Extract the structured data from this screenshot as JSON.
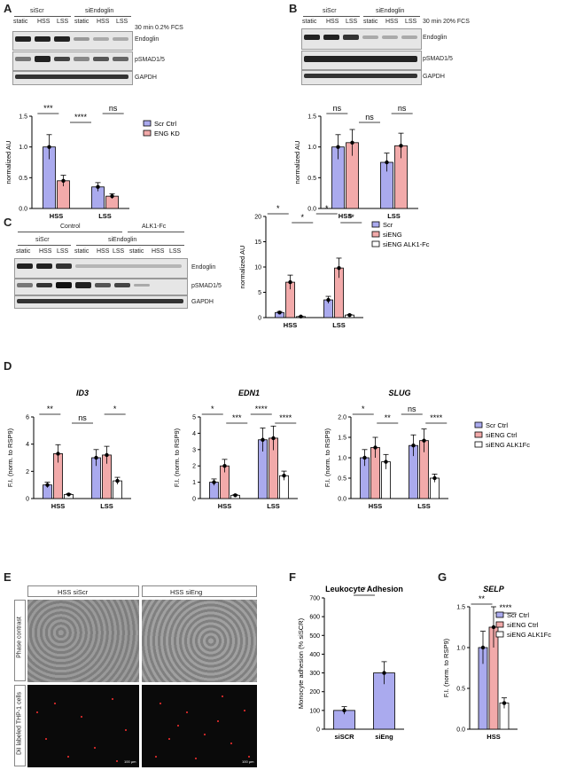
{
  "panels": {
    "A": {
      "letter": "A",
      "groups": [
        "siScr",
        "siEndoglin"
      ],
      "lanes": [
        "static",
        "HSS",
        "LSS",
        "static",
        "HSS",
        "LSS"
      ],
      "condition": "30 min 0.2% FCS",
      "blots": [
        "Endoglin",
        "pSMAD1/5",
        "GAPDH"
      ]
    },
    "B": {
      "letter": "B",
      "groups": [
        "siScr",
        "siEndoglin"
      ],
      "lanes": [
        "static",
        "HSS",
        "LSS",
        "static",
        "HSS",
        "LSS"
      ],
      "condition": "30 min 20% FCS",
      "blots": [
        "Endoglin",
        "pSMAD1/5",
        "GAPDH"
      ]
    },
    "C": {
      "letter": "C",
      "top_groups": [
        "Control",
        "ALK1-Fc"
      ],
      "groups": [
        "siScr",
        "siEndoglin"
      ],
      "lanes": [
        "static",
        "HSS",
        "LSS",
        "static",
        "HSS",
        "LSS",
        "static",
        "HSS",
        "LSS"
      ],
      "blots": [
        "Endoglin",
        "pSMAD1/5",
        "GAPDH"
      ]
    },
    "D": {
      "letter": "D"
    },
    "E": {
      "letter": "E",
      "columns": [
        "HSS siScr",
        "HSS siEng"
      ],
      "rows": [
        "Phase contrast",
        "DiI labeled THP-1 cells"
      ],
      "scale": "100 µm"
    },
    "F": {
      "letter": "F"
    },
    "G": {
      "letter": "G"
    }
  },
  "chart_data": [
    {
      "id": "A",
      "type": "bar",
      "categories": [
        "HSS",
        "LSS"
      ],
      "ylabel": "normalized AU",
      "ylim": [
        0,
        1.5
      ],
      "yticks": [
        "0.0",
        "0.5",
        "1.0",
        "1.5"
      ],
      "series": [
        {
          "name": "Scr Ctrl",
          "color": "#aaaaee",
          "values": [
            1.0,
            0.35
          ]
        },
        {
          "name": "ENG KD",
          "color": "#f2aaaa",
          "values": [
            0.45,
            0.2
          ]
        }
      ],
      "points": [
        [
          [
            1.0,
            1.0,
            1.0
          ],
          [
            0.42,
            0.38,
            0.52
          ]
        ],
        [
          [
            0.3,
            0.42,
            0.35
          ],
          [
            0.17,
            0.22,
            0.2
          ]
        ]
      ],
      "sig": [
        "***",
        "****",
        "ns"
      ]
    },
    {
      "id": "B",
      "type": "bar",
      "categories": [
        "HSS",
        "LSS"
      ],
      "ylabel": "normalized AU",
      "ylim": [
        0,
        1.5
      ],
      "yticks": [
        "0.0",
        "0.5",
        "1.0",
        "1.5"
      ],
      "series": [
        {
          "name": "Scr Ctrl",
          "color": "#aaaaee",
          "values": [
            1.0,
            0.75
          ]
        },
        {
          "name": "ENG KD",
          "color": "#f2aaaa",
          "values": [
            1.07,
            1.02
          ]
        }
      ],
      "points": [
        [
          [
            1.0,
            1.0,
            1.0
          ],
          [
            0.88,
            1.15,
            1.18
          ]
        ],
        [
          [
            0.6,
            0.8,
            0.86
          ],
          [
            0.88,
            1.05,
            1.14
          ]
        ]
      ],
      "sig": [
        "ns",
        "ns",
        "ns"
      ]
    },
    {
      "id": "C",
      "type": "bar",
      "categories": [
        "HSS",
        "LSS"
      ],
      "ylabel": "normalized AU",
      "ylim": [
        0,
        20
      ],
      "yticks": [
        "0",
        "5",
        "10",
        "15",
        "20"
      ],
      "series": [
        {
          "name": "Scr",
          "color": "#aaaaee",
          "values": [
            1.0,
            3.5
          ]
        },
        {
          "name": "siENG",
          "color": "#f2aaaa",
          "values": [
            7.0,
            9.8
          ]
        },
        {
          "name": "siENG ALK1-Fc",
          "color": "#ffffff",
          "values": [
            0.2,
            0.5
          ]
        }
      ],
      "sig": [
        "*",
        "*",
        "*",
        "**"
      ]
    },
    {
      "id": "D-ID3",
      "type": "bar",
      "title": "ID3",
      "categories": [
        "HSS",
        "LSS"
      ],
      "ylabel": "F.I. (norm. to RSP9)",
      "ylim": [
        0,
        6
      ],
      "yticks": [
        "0",
        "2",
        "4",
        "6"
      ],
      "series": [
        {
          "name": "Scr Ctrl",
          "color": "#aaaaee",
          "values": [
            1.0,
            3.0
          ]
        },
        {
          "name": "siENG Ctrl",
          "color": "#f2aaaa",
          "values": [
            3.3,
            3.2
          ]
        },
        {
          "name": "siENG ALK1Fc",
          "color": "#ffffff",
          "values": [
            0.3,
            1.3
          ]
        }
      ],
      "sig": [
        "**",
        "ns",
        "*"
      ]
    },
    {
      "id": "D-EDN1",
      "type": "bar",
      "title": "EDN1",
      "categories": [
        "HSS",
        "LSS"
      ],
      "ylabel": "F.I. (norm. to RSP9)",
      "ylim": [
        0,
        5
      ],
      "yticks": [
        "0",
        "1",
        "2",
        "3",
        "4",
        "5"
      ],
      "series": [
        {
          "name": "Scr Ctrl",
          "color": "#aaaaee",
          "values": [
            1.0,
            3.6
          ]
        },
        {
          "name": "siENG Ctrl",
          "color": "#f2aaaa",
          "values": [
            2.0,
            3.7
          ]
        },
        {
          "name": "siENG ALK1Fc",
          "color": "#ffffff",
          "values": [
            0.2,
            1.4
          ]
        }
      ],
      "sig": [
        "*",
        "***",
        "****",
        "****"
      ]
    },
    {
      "id": "D-SLUG",
      "type": "bar",
      "title": "SLUG",
      "categories": [
        "HSS",
        "LSS"
      ],
      "ylabel": "F.I. (norm. to RSP9)",
      "ylim": [
        0,
        2.0
      ],
      "yticks": [
        "0.0",
        "0.5",
        "1.0",
        "1.5",
        "2.0"
      ],
      "series": [
        {
          "name": "Scr Ctrl",
          "color": "#aaaaee",
          "values": [
            1.0,
            1.3
          ]
        },
        {
          "name": "siENG Ctrl",
          "color": "#f2aaaa",
          "values": [
            1.25,
            1.42
          ]
        },
        {
          "name": "siENG ALK1Fc",
          "color": "#ffffff",
          "values": [
            0.9,
            0.5
          ]
        }
      ],
      "sig": [
        "*",
        "**",
        "ns",
        "****"
      ]
    },
    {
      "id": "F",
      "type": "bar",
      "title": "Leukocyte Adhesion",
      "categories": [
        "siSCR",
        "siEng"
      ],
      "ylabel": "Monocyte adhesion (% siSCR)",
      "ylim": [
        0,
        700
      ],
      "yticks": [
        "0",
        "100",
        "200",
        "300",
        "400",
        "500",
        "600",
        "700"
      ],
      "series": [
        {
          "name": "",
          "color": "#aaaaee",
          "values": [
            100,
            300
          ]
        }
      ],
      "values2": {
        "siEng": 300
      },
      "sig": [
        "*"
      ]
    },
    {
      "id": "G",
      "type": "bar",
      "title": "SELP",
      "categories": [
        "HSS"
      ],
      "ylabel": "F.I. (norm. to RSP9)",
      "ylim": [
        0,
        1.5
      ],
      "yticks": [
        "0.0",
        "0.5",
        "1.0",
        "1.5"
      ],
      "series": [
        {
          "name": "Scr Ctrl",
          "color": "#aaaaee",
          "values": [
            1.0
          ]
        },
        {
          "name": "siENG Ctrl",
          "color": "#f2aaaa",
          "values": [
            1.25
          ]
        },
        {
          "name": "siENG ALK1Fc",
          "color": "#ffffff",
          "values": [
            0.32
          ]
        }
      ],
      "sig": [
        "**",
        "****"
      ]
    }
  ]
}
